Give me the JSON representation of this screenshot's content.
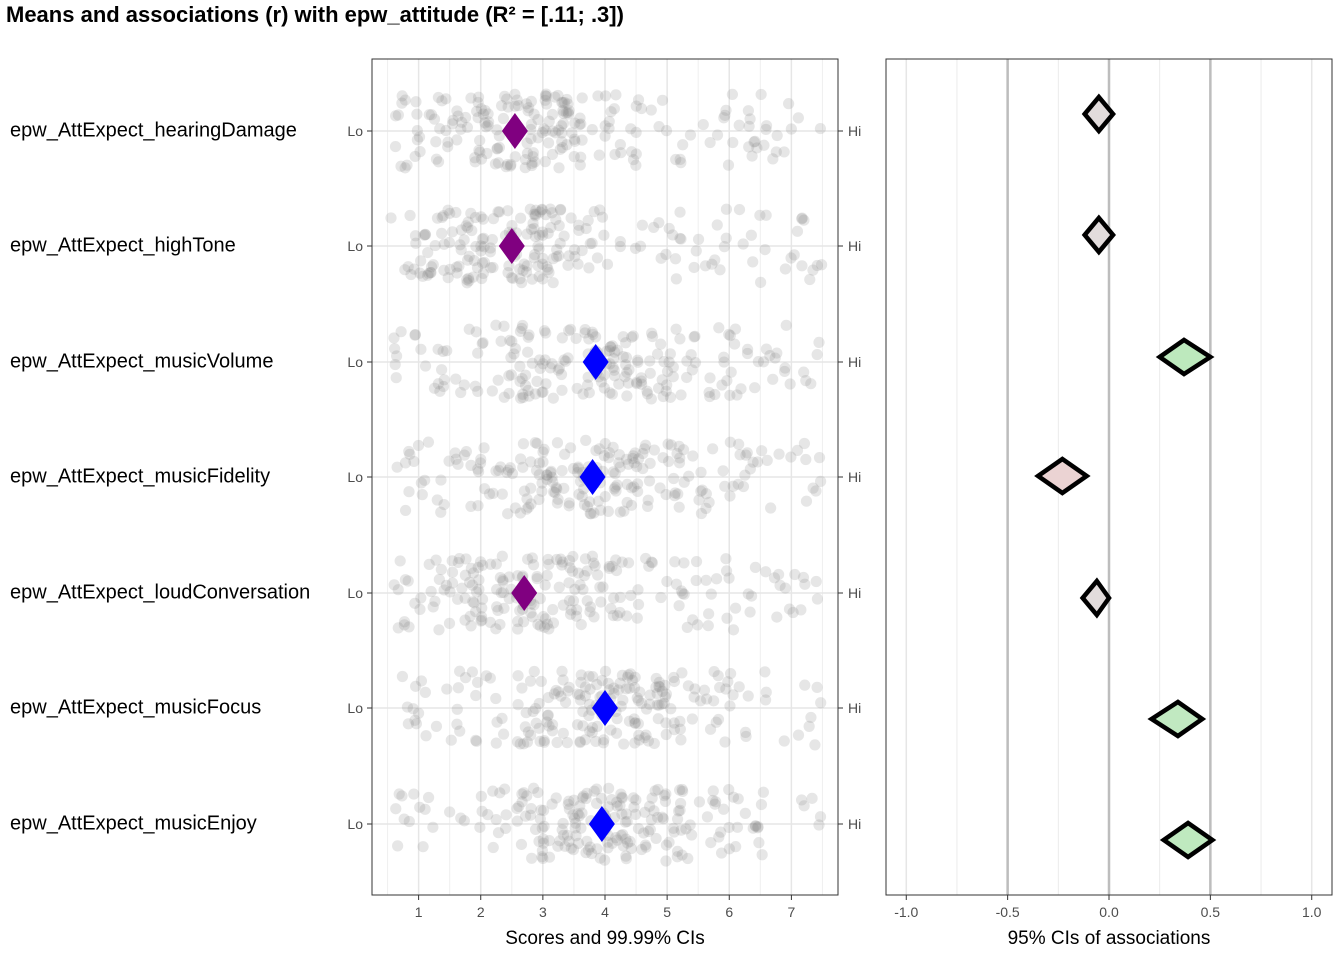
{
  "chart_data": [
    {
      "type": "scatter",
      "title": "Means and associations (r) with epw_attitude (R² = [.11; .3])",
      "xlabel": "Scores and 99.99% CIs",
      "xlim": [
        0.25,
        7.75
      ],
      "x_ticks": [
        "1",
        "2",
        "3",
        "4",
        "5",
        "6",
        "7"
      ],
      "low_label": "Lo",
      "high_label": "Hi",
      "grid": true,
      "categories": [
        "epw_AttExpect_hearingDamage",
        "epw_AttExpect_highTone",
        "epw_AttExpect_musicVolume",
        "epw_AttExpect_musicFidelity",
        "epw_AttExpect_loudConversation",
        "epw_AttExpect_musicFocus",
        "epw_AttExpect_musicEnjoy"
      ],
      "means": [
        2.55,
        2.5,
        3.85,
        3.8,
        2.7,
        4.0,
        3.95
      ],
      "mean_colors": [
        "#800080",
        "#800080",
        "#0000ff",
        "#0000ff",
        "#800080",
        "#0000ff",
        "#0000ff"
      ],
      "point_color": "#808080"
    },
    {
      "type": "scatter",
      "xlabel": "95% CIs of associations",
      "xlim": [
        -1.1,
        1.1
      ],
      "x_ticks": [
        "-1.0",
        "-0.5",
        "0.0",
        "0.5",
        "1.0"
      ],
      "grid": true,
      "categories": [
        "epw_AttExpect_hearingDamage",
        "epw_AttExpect_highTone",
        "epw_AttExpect_musicVolume",
        "epw_AttExpect_musicFidelity",
        "epw_AttExpect_loudConversation",
        "epw_AttExpect_musicFocus",
        "epw_AttExpect_musicEnjoy"
      ],
      "r_ci": [
        [
          -0.12,
          0.02
        ],
        [
          -0.12,
          0.02
        ],
        [
          0.25,
          0.5
        ],
        [
          -0.35,
          -0.11
        ],
        [
          -0.13,
          0.0
        ],
        [
          0.21,
          0.46
        ],
        [
          0.27,
          0.51
        ]
      ],
      "r_point": [
        -0.05,
        -0.05,
        0.37,
        -0.23,
        -0.06,
        0.34,
        0.39
      ],
      "fill_colors": [
        "#e2dcdc",
        "#e2dcdc",
        "#bde9bd",
        "#ebd3d3",
        "#e2dcdc",
        "#c1e9c1",
        "#bfe9bf"
      ]
    }
  ]
}
